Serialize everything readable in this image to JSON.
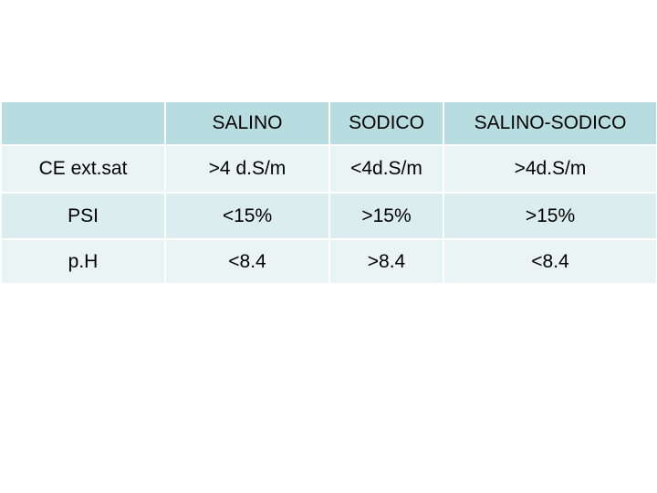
{
  "table": {
    "header": [
      "SALINO",
      "SODICO",
      "SALINO-SODICO"
    ],
    "rows": [
      [
        "CE ext.sat",
        ">4 d.S/m",
        "<4d.S/m",
        ">4d.S/m"
      ],
      [
        "PSI",
        "<15%",
        ">15%",
        ">15%"
      ],
      [
        "p.H",
        "<8.4",
        ">8.4",
        "<8.4"
      ]
    ]
  }
}
